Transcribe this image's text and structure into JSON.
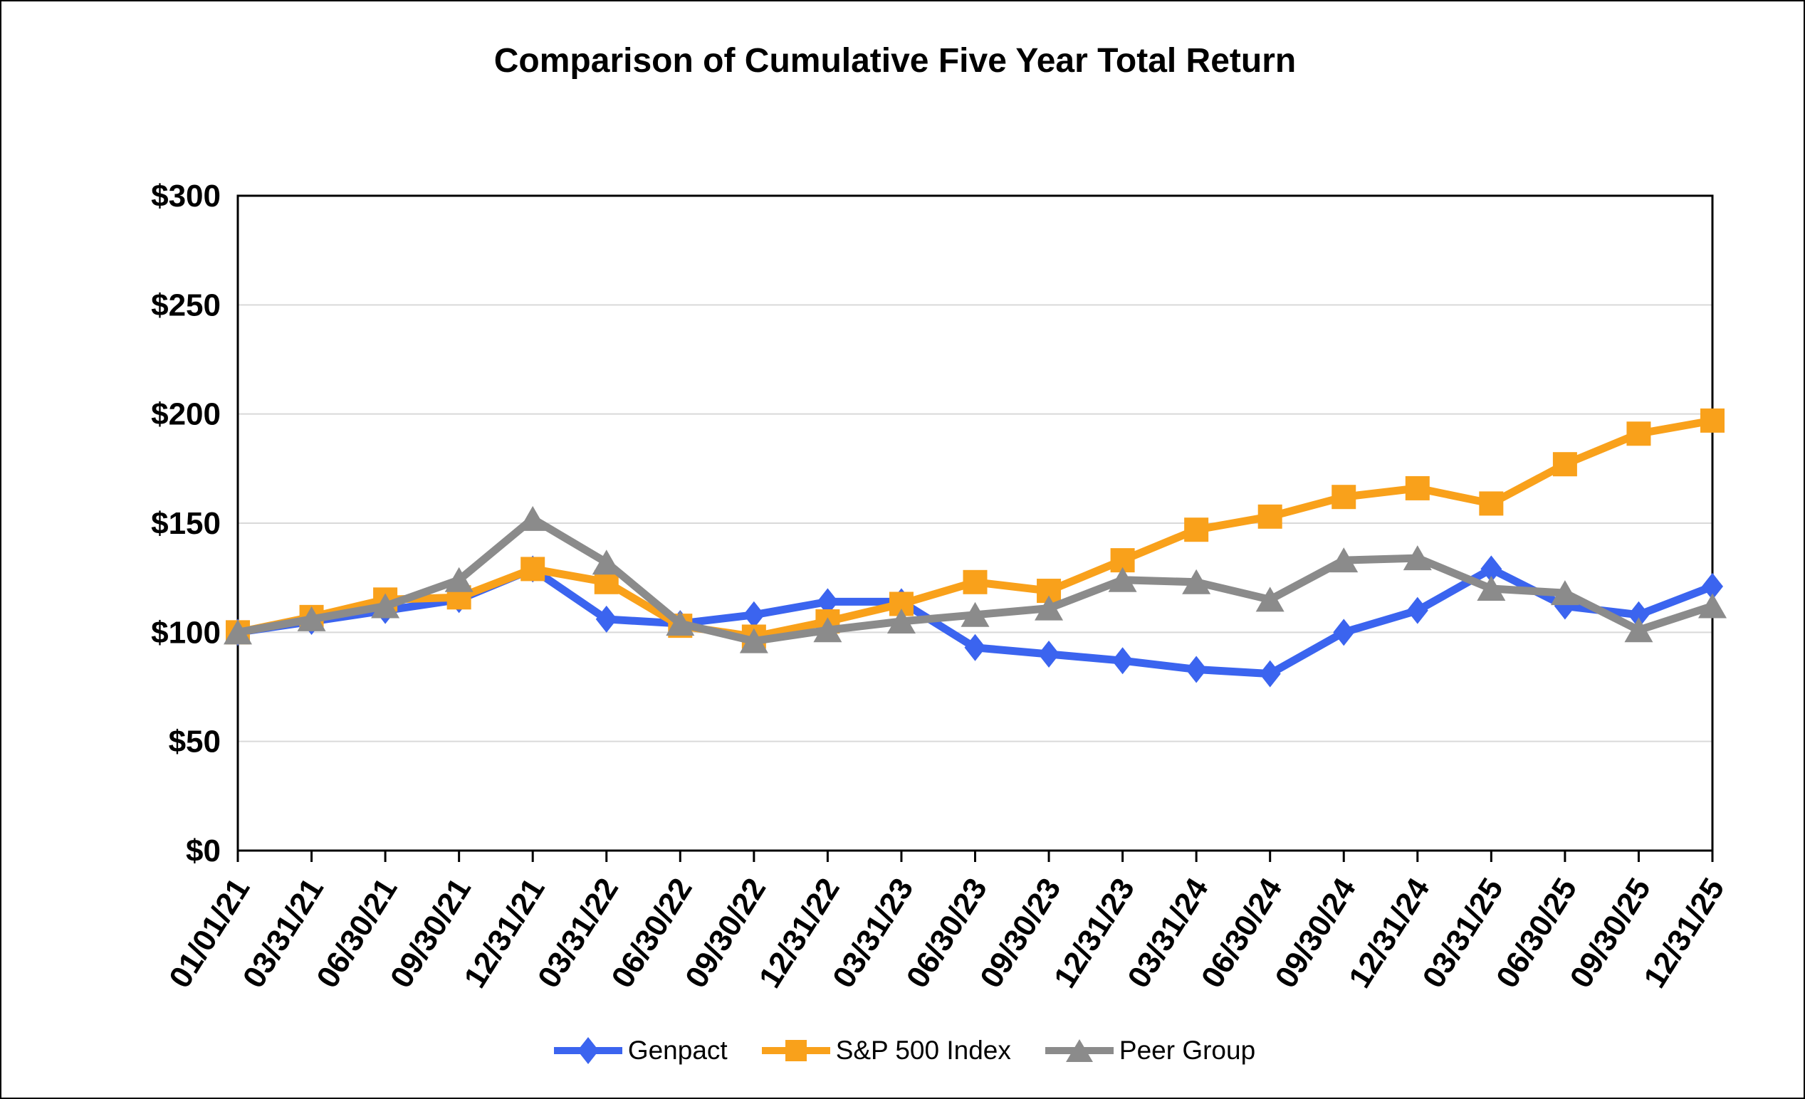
{
  "title": "Comparison of Cumulative Five Year Total Return",
  "colors": {
    "genpact": "#3B64EF",
    "sp500": "#F9A11B",
    "peer": "#8B8B8B",
    "gridline": "#D9D9D9",
    "axis": "#000000",
    "background": "#FFFFFF"
  },
  "legend": {
    "items": [
      {
        "label": "Genpact",
        "marker": "diamond",
        "color": "#3B64EF"
      },
      {
        "label": "S&P 500 Index",
        "marker": "square",
        "color": "#F9A11B"
      },
      {
        "label": "Peer Group",
        "marker": "triangle",
        "color": "#8B8B8B"
      }
    ]
  },
  "y_axis": {
    "tick_labels": [
      "$0",
      "$50",
      "$100",
      "$150",
      "$200",
      "$250",
      "$300"
    ],
    "tick_values": [
      0,
      50,
      100,
      150,
      200,
      250,
      300
    ]
  },
  "chart_data": {
    "type": "line",
    "title": "Comparison of Cumulative Five Year Total Return",
    "xlabel": "",
    "ylabel": "",
    "ylim": [
      0,
      300
    ],
    "y_tick_step": 50,
    "grid": true,
    "legend_position": "bottom",
    "categories": [
      "01/01/21",
      "03/31/21",
      "06/30/21",
      "09/30/21",
      "12/31/21",
      "03/31/22",
      "06/30/22",
      "09/30/22",
      "12/31/22",
      "03/31/23",
      "06/30/23",
      "09/30/23",
      "12/31/23",
      "03/31/24",
      "06/30/24",
      "09/30/24",
      "12/31/24",
      "03/31/25",
      "06/30/25",
      "09/30/25",
      "12/31/25"
    ],
    "series": [
      {
        "name": "Genpact",
        "marker": "diamond",
        "color": "#3B64EF",
        "values": [
          100,
          105,
          110,
          115,
          129,
          106,
          104,
          108,
          114,
          114,
          93,
          90,
          87,
          83,
          81,
          100,
          110,
          129,
          112,
          108,
          121
        ]
      },
      {
        "name": "S&P 500 Index",
        "marker": "square",
        "color": "#F9A11B",
        "values": [
          100,
          107,
          115,
          116,
          129,
          123,
          103,
          98,
          105,
          113,
          123,
          119,
          133,
          147,
          153,
          162,
          166,
          159,
          177,
          191,
          197
        ]
      },
      {
        "name": "Peer Group",
        "marker": "triangle",
        "color": "#8B8B8B",
        "values": [
          100,
          106,
          112,
          124,
          152,
          132,
          104,
          96,
          101,
          105,
          108,
          111,
          124,
          123,
          115,
          133,
          134,
          120,
          118,
          101,
          112
        ]
      }
    ]
  }
}
